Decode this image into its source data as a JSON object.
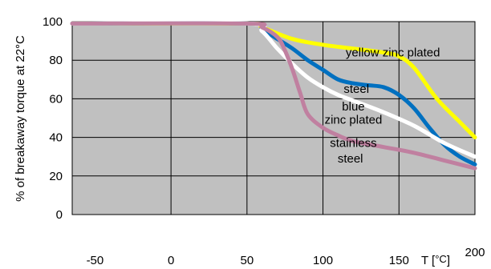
{
  "chart_data": {
    "type": "line",
    "title": "",
    "ylabel": "% of breakaway torque at 22°C",
    "xlabel_parts": {
      "main": "T [",
      "unit": "°C",
      "close": "]"
    },
    "xlim": [
      -65,
      200
    ],
    "ylim": [
      0,
      100
    ],
    "x_ticks": [
      -50,
      0,
      50,
      100,
      150,
      200
    ],
    "y_ticks": [
      0,
      20,
      40,
      60,
      80,
      100
    ],
    "vertical_gridlines": [
      0,
      50,
      100,
      150
    ],
    "horizontal_gridlines": [
      20,
      40,
      60,
      80
    ],
    "grid": true,
    "background_color": "#c0c0c0",
    "series": [
      {
        "name": "yellow zinc plated",
        "color": "#ffff00",
        "x": [
          -65,
          50,
          60,
          80,
          100,
          120,
          140,
          150,
          160,
          175,
          190,
          200
        ],
        "y": [
          99,
          99,
          97,
          91,
          88,
          86,
          84,
          82,
          76,
          60,
          48,
          40
        ]
      },
      {
        "name": "steel",
        "color": "#0070c0",
        "x": [
          -65,
          50,
          60,
          70,
          80,
          90,
          100,
          110,
          120,
          130,
          140,
          150,
          160,
          170,
          180,
          190,
          200
        ],
        "y": [
          99,
          99,
          96,
          91,
          86,
          80,
          75,
          70,
          68,
          67,
          66,
          62,
          55,
          45,
          36,
          30,
          26
        ]
      },
      {
        "name": "blue zinc plated",
        "color": "#ffffff",
        "x": [
          -65,
          50,
          60,
          70,
          80,
          90,
          100,
          110,
          120,
          140,
          160,
          180,
          200
        ],
        "y": [
          99,
          99,
          95,
          86,
          78,
          71,
          66,
          62,
          59,
          53,
          46,
          37,
          30
        ]
      },
      {
        "name": "stainless steel",
        "color": "#c080a0",
        "x": [
          -65,
          50,
          60,
          70,
          75,
          80,
          85,
          90,
          100,
          110,
          120,
          140,
          160,
          180,
          200
        ],
        "y": [
          99,
          99,
          97,
          92,
          85,
          75,
          63,
          52,
          45,
          41,
          38,
          35,
          32,
          28,
          24
        ]
      }
    ],
    "annotations": [
      {
        "text": "yellow zinc plated",
        "x": 146,
        "y": 82
      },
      {
        "text": "steel",
        "x": 122,
        "y": 63
      },
      {
        "text": "blue",
        "x": 120,
        "y": 54
      },
      {
        "text": "zinc plated",
        "x": 120,
        "y": 47
      },
      {
        "text": "stainless",
        "x": 120,
        "y": 35
      },
      {
        "text": "steel",
        "x": 118,
        "y": 27
      }
    ]
  }
}
